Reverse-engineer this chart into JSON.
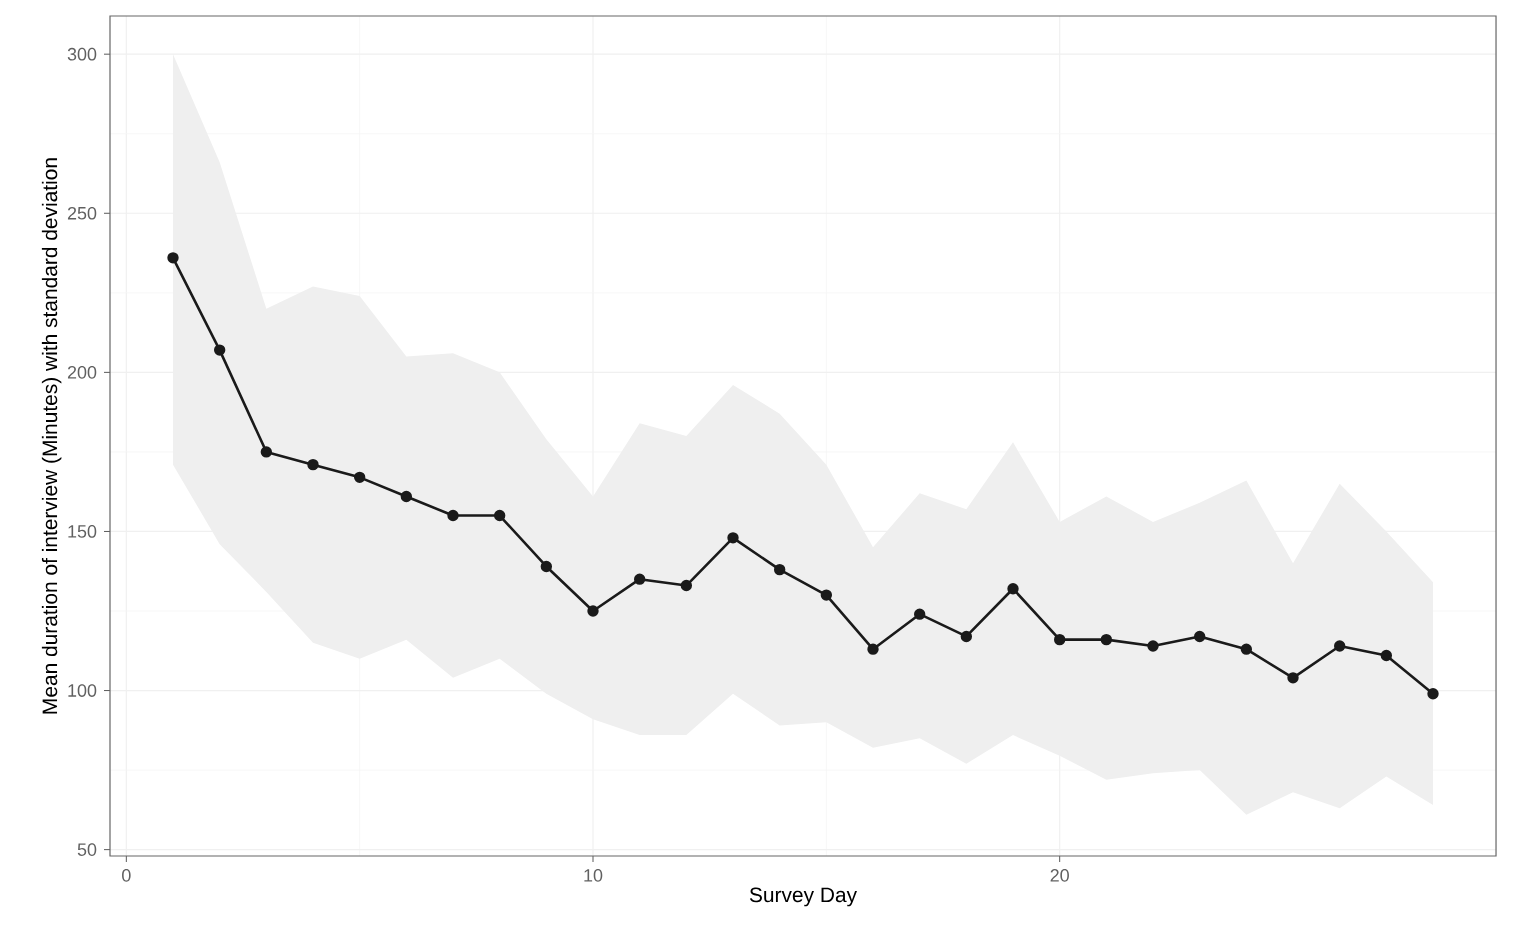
{
  "chart_data": {
    "type": "line",
    "xlabel": "Survey Day",
    "ylabel": "Mean duration of interview (Minutes) with standard deviation",
    "x": [
      1,
      2,
      3,
      4,
      5,
      6,
      7,
      8,
      9,
      10,
      11,
      12,
      13,
      14,
      15,
      16,
      17,
      18,
      19,
      20,
      21,
      22,
      23,
      24,
      25,
      26,
      27,
      28
    ],
    "series": [
      {
        "color": "#1a1a1a",
        "values": [
          236,
          207,
          175,
          171,
          167,
          161,
          155,
          155,
          139,
          125,
          135,
          133,
          148,
          138,
          130,
          113,
          124,
          117,
          132,
          116,
          116,
          114,
          117,
          113,
          104,
          114,
          111,
          99
        ],
        "upper": [
          300,
          266,
          220,
          227,
          224,
          205,
          206,
          200,
          179,
          161,
          184,
          180,
          196,
          187,
          171,
          145,
          162,
          157,
          178,
          153,
          161,
          153,
          159,
          166,
          140,
          165,
          150,
          134
        ],
        "lower": [
          171,
          146,
          131,
          115,
          110,
          116,
          104,
          110,
          99,
          91,
          86,
          86,
          99,
          89,
          90,
          82,
          85,
          77,
          86,
          79.5,
          72,
          74,
          75,
          61,
          68,
          63,
          73,
          64
        ]
      }
    ],
    "xlim": [
      -0.35,
      29.35
    ],
    "ylim": [
      48,
      312
    ],
    "xticks": [
      0,
      10,
      20
    ],
    "yticks": [
      50,
      100,
      150,
      200,
      250,
      300
    ],
    "grid": true,
    "marker": "circle",
    "line_style": "solid"
  }
}
